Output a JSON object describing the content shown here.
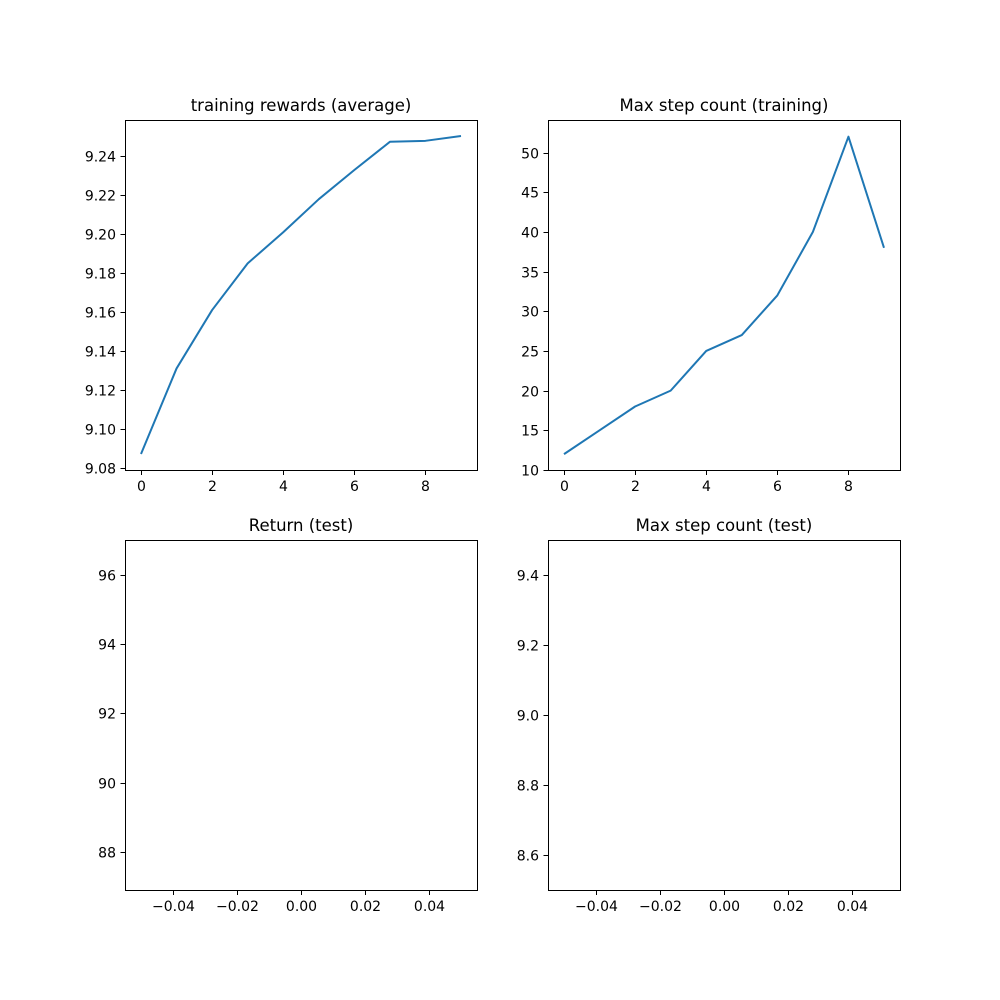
{
  "chart_data": [
    {
      "type": "line",
      "title": "training rewards (average)",
      "xlabel": "",
      "ylabel": "",
      "x": [
        0,
        1,
        2,
        3,
        4,
        5,
        6,
        7,
        8,
        9
      ],
      "series": [
        {
          "values": [
            9.087,
            9.131,
            9.161,
            9.185,
            9.201,
            9.218,
            9.233,
            9.2475,
            9.248,
            9.2505
          ]
        }
      ],
      "xlim": [
        -0.45,
        9.45
      ],
      "ylim": [
        9.0788,
        9.2587
      ],
      "xticks": [
        0,
        2,
        4,
        6,
        8
      ],
      "xtick_labels": [
        "0",
        "2",
        "4",
        "6",
        "8"
      ],
      "yticks": [
        9.08,
        9.1,
        9.12,
        9.14,
        9.16,
        9.18,
        9.2,
        9.22,
        9.24
      ],
      "ytick_labels": [
        "9.08",
        "9.10",
        "9.12",
        "9.14",
        "9.16",
        "9.18",
        "9.20",
        "9.22",
        "9.24"
      ],
      "grid": false,
      "color": "#1f77b4"
    },
    {
      "type": "line",
      "title": "Max step count (training)",
      "xlabel": "",
      "ylabel": "",
      "x": [
        0,
        1,
        2,
        3,
        4,
        5,
        6,
        7,
        8,
        9
      ],
      "series": [
        {
          "values": [
            12,
            15,
            18,
            20,
            25,
            27,
            32,
            40,
            52,
            38
          ]
        }
      ],
      "xlim": [
        -0.45,
        9.45
      ],
      "ylim": [
        10,
        54.1
      ],
      "xticks": [
        0,
        2,
        4,
        6,
        8
      ],
      "xtick_labels": [
        "0",
        "2",
        "4",
        "6",
        "8"
      ],
      "yticks": [
        10,
        15,
        20,
        25,
        30,
        35,
        40,
        45,
        50
      ],
      "ytick_labels": [
        "10",
        "15",
        "20",
        "25",
        "30",
        "35",
        "40",
        "45",
        "50"
      ],
      "grid": false,
      "color": "#1f77b4"
    },
    {
      "type": "line",
      "title": "Return (test)",
      "xlabel": "",
      "ylabel": "",
      "x": [],
      "series": [],
      "xlim": [
        -0.055,
        0.055
      ],
      "ylim": [
        86.9,
        97.0
      ],
      "xticks": [
        -0.04,
        -0.02,
        0.0,
        0.02,
        0.04
      ],
      "xtick_labels": [
        "−0.04",
        "−0.02",
        "0.00",
        "0.02",
        "0.04"
      ],
      "yticks": [
        88,
        90,
        92,
        94,
        96
      ],
      "ytick_labels": [
        "88",
        "90",
        "92",
        "94",
        "96"
      ],
      "grid": false,
      "color": "#1f77b4"
    },
    {
      "type": "line",
      "title": "Max step count (test)",
      "xlabel": "",
      "ylabel": "",
      "x": [],
      "series": [],
      "xlim": [
        -0.055,
        0.055
      ],
      "ylim": [
        8.5,
        9.5
      ],
      "xticks": [
        -0.04,
        -0.02,
        0.0,
        0.02,
        0.04
      ],
      "xtick_labels": [
        "−0.04",
        "−0.02",
        "0.00",
        "0.02",
        "0.04"
      ],
      "yticks": [
        8.6,
        8.8,
        9.0,
        9.2,
        9.4
      ],
      "ytick_labels": [
        "8.6",
        "8.8",
        "9.0",
        "9.2",
        "9.4"
      ],
      "grid": false,
      "color": "#1f77b4"
    }
  ]
}
